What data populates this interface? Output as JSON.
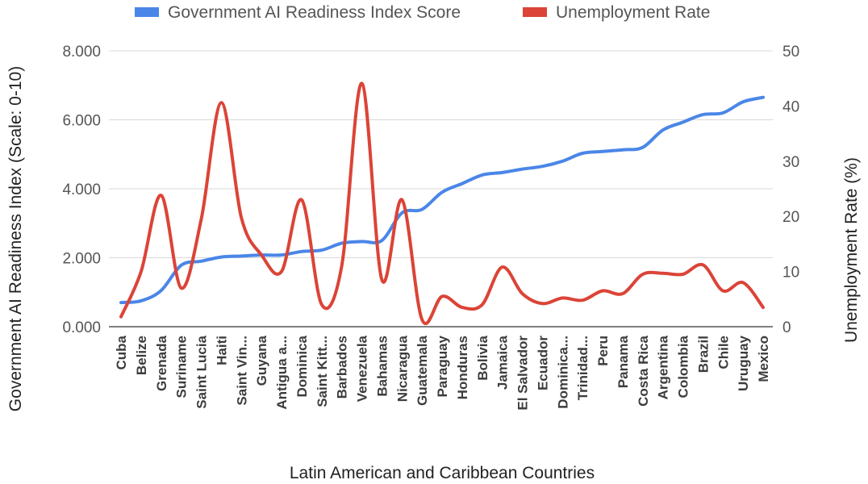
{
  "chart_data": {
    "type": "line",
    "xlabel": "Latin American and Caribbean Countries",
    "ylabel_left": "Government AI Readiness Index (Scale: 0-10)",
    "ylabel_right": "Unemployment Rate (%)",
    "y_left_lim": [
      0,
      8
    ],
    "y_right_lim": [
      0,
      50
    ],
    "y_left_ticks": [
      "0.000",
      "2.000",
      "4.000",
      "6.000",
      "8.000"
    ],
    "y_right_ticks": [
      "0",
      "10",
      "20",
      "30",
      "40",
      "50"
    ],
    "legend_position": "top",
    "grid": true,
    "categories": [
      "Cuba",
      "Belize",
      "Grenada",
      "Suriname",
      "Saint Lucia",
      "Haiti",
      "Saint Vin...",
      "Guyana",
      "Antigua a...",
      "Dominica",
      "Saint Kitt...",
      "Barbados",
      "Venezuela",
      "Bahamas",
      "Nicaragua",
      "Guatemala",
      "Paraguay",
      "Honduras",
      "Bolivia",
      "Jamaica",
      "El Salvador",
      "Ecuador",
      "Dominica...",
      "Trinidad...",
      "Peru",
      "Panama",
      "Costa Rica",
      "Argentina",
      "Colombia",
      "Brazil",
      "Chile",
      "Uruguay",
      "Mexico"
    ],
    "series": [
      {
        "name": "Government AI Readiness Index Score",
        "axis": "left",
        "color": "#4a86e8",
        "values": [
          0.7,
          0.75,
          1.05,
          1.78,
          1.9,
          2.02,
          2.05,
          2.08,
          2.08,
          2.18,
          2.22,
          2.42,
          2.47,
          2.5,
          3.3,
          3.4,
          3.9,
          4.15,
          4.4,
          4.47,
          4.57,
          4.65,
          4.8,
          5.03,
          5.08,
          5.13,
          5.2,
          5.7,
          5.93,
          6.15,
          6.2,
          6.52,
          6.65
        ]
      },
      {
        "name": "Unemployment Rate",
        "axis": "right",
        "color": "#db4437",
        "values": [
          1.8,
          10.0,
          23.8,
          7.0,
          19.5,
          40.6,
          19.7,
          13.0,
          10.0,
          23.0,
          4.0,
          11.0,
          44.1,
          8.5,
          23.0,
          1.3,
          5.5,
          3.5,
          4.0,
          10.8,
          6.0,
          4.2,
          5.2,
          4.8,
          6.5,
          6.0,
          9.5,
          9.7,
          9.5,
          11.2,
          6.5,
          8.0,
          3.5
        ]
      }
    ]
  }
}
